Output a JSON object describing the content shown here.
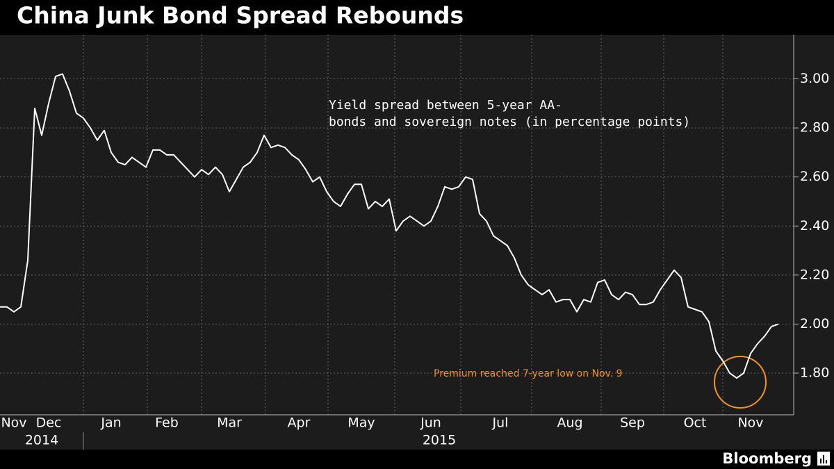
{
  "chart_data": {
    "type": "line",
    "title": "China Junk Bond Spread Rebounds",
    "subtitle": [
      "Yield spread between 5-year AA-",
      "bonds and sovereign notes (in percentage points)"
    ],
    "annotation": "Premium reached 7-year low on Nov. 9",
    "source": "Bloomberg",
    "years": [
      "2014",
      "2015"
    ],
    "categories": [
      null,
      null,
      "Nov",
      null,
      null,
      null,
      null,
      "Dec",
      null,
      null,
      null,
      null,
      null,
      null,
      null,
      null,
      "Jan",
      null,
      null,
      null,
      null,
      null,
      null,
      null,
      "Feb",
      null,
      null,
      null,
      null,
      null,
      null,
      null,
      null,
      "Mar",
      null,
      null,
      null,
      null,
      null,
      null,
      null,
      null,
      null,
      "Apr",
      null,
      null,
      null,
      null,
      null,
      null,
      null,
      null,
      "May",
      null,
      null,
      null,
      null,
      null,
      null,
      null,
      null,
      null,
      "Jun",
      null,
      null,
      null,
      null,
      null,
      null,
      null,
      null,
      null,
      "Jul",
      null,
      null,
      null,
      null,
      null,
      null,
      null,
      null,
      null,
      "Aug",
      null,
      null,
      null,
      null,
      null,
      null,
      null,
      null,
      "Sep",
      null,
      null,
      null,
      null,
      null,
      null,
      null,
      null,
      "Oct",
      null,
      null,
      null,
      null,
      null,
      null,
      null,
      "Nov",
      null,
      null,
      null,
      null
    ],
    "series": [
      {
        "color": "#ffffff",
        "values": [
          2.07,
          2.07,
          2.05,
          2.07,
          2.26,
          2.88,
          2.77,
          2.9,
          3.01,
          3.02,
          2.95,
          2.86,
          2.84,
          2.8,
          2.75,
          2.79,
          2.7,
          2.66,
          2.65,
          2.68,
          2.66,
          2.64,
          2.71,
          2.71,
          2.69,
          2.69,
          2.66,
          2.63,
          2.6,
          2.63,
          2.61,
          2.64,
          2.61,
          2.54,
          2.59,
          2.64,
          2.66,
          2.7,
          2.77,
          2.72,
          2.73,
          2.72,
          2.69,
          2.67,
          2.63,
          2.58,
          2.6,
          2.54,
          2.5,
          2.48,
          2.53,
          2.57,
          2.57,
          2.47,
          2.5,
          2.48,
          2.51,
          2.38,
          2.42,
          2.44,
          2.42,
          2.4,
          2.42,
          2.48,
          2.56,
          2.55,
          2.56,
          2.6,
          2.59,
          2.45,
          2.42,
          2.36,
          2.34,
          2.32,
          2.27,
          2.2,
          2.16,
          2.14,
          2.12,
          2.14,
          2.09,
          2.1,
          2.1,
          2.05,
          2.1,
          2.09,
          2.17,
          2.18,
          2.12,
          2.1,
          2.13,
          2.12,
          2.08,
          2.08,
          2.09,
          2.14,
          2.18,
          2.22,
          2.19,
          2.07,
          2.06,
          2.05,
          2.01,
          1.89,
          1.85,
          1.8,
          1.78,
          1.8,
          1.88,
          1.92,
          1.95,
          1.99,
          2.0
        ]
      }
    ],
    "ylim": [
      1.63,
      3.18
    ],
    "yticks": [
      {
        "value": 1.8,
        "label": "1.80"
      },
      {
        "value": 2.0,
        "label": "2.00"
      },
      {
        "value": 2.2,
        "label": "2.20"
      },
      {
        "value": 2.4,
        "label": "2.40"
      },
      {
        "value": 2.6,
        "label": "2.60"
      },
      {
        "value": 2.8,
        "label": "2.80"
      },
      {
        "value": 3.0,
        "label": "3.00"
      }
    ],
    "grid": true,
    "annotation_color": "#f7941d"
  }
}
